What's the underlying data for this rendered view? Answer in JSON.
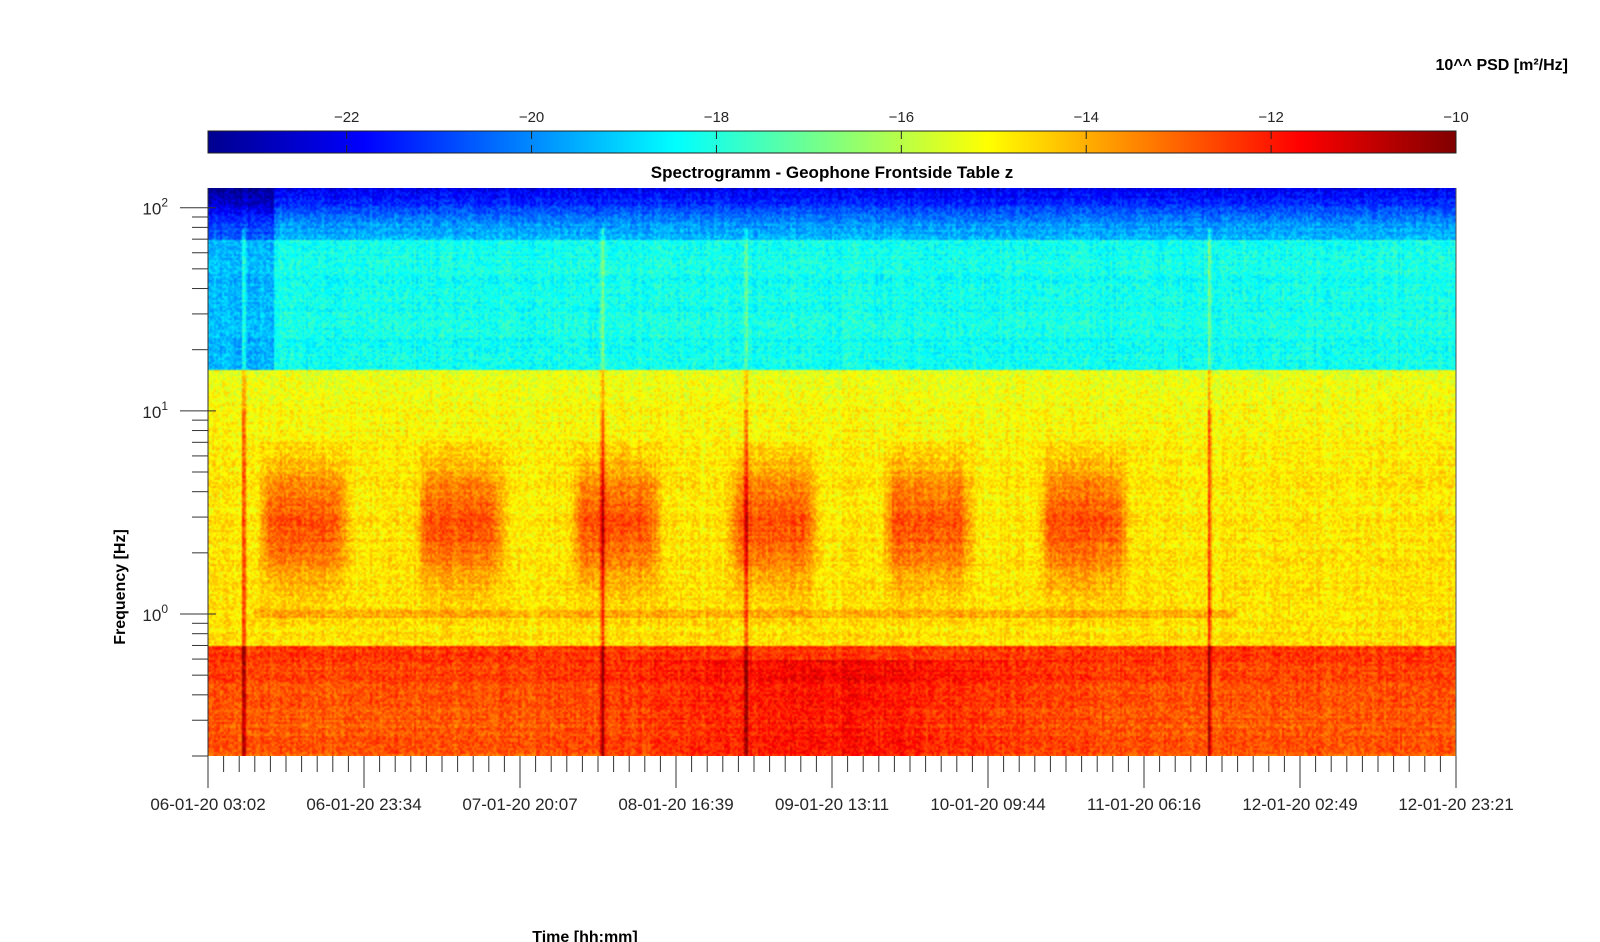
{
  "chart_data": {
    "type": "heatmap",
    "title": "Spectrogramm - Geophone Frontside Table z",
    "xlabel": "Time [hh:mm]",
    "ylabel": "Frequency [Hz]",
    "y_scale": "log",
    "ylim": [
      0.2,
      125
    ],
    "y_ticks": [
      {
        "value": 1,
        "base": "10",
        "exp": "0"
      },
      {
        "value": 10,
        "base": "10",
        "exp": "1"
      },
      {
        "value": 100,
        "base": "10",
        "exp": "2"
      }
    ],
    "x_tick_labels": [
      "06-01-20 03:02",
      "06-01-20 23:34",
      "07-01-20 20:07",
      "08-01-20 16:39",
      "09-01-20 13:11",
      "10-01-20 09:44",
      "11-01-20 06:16",
      "12-01-20 02:49",
      "12-01-20 23:21"
    ],
    "colorbar": {
      "label": "10^^ PSD [m²/Hz]",
      "range": [
        -23.5,
        -10
      ],
      "ticks": [
        -22,
        -20,
        -18,
        -16,
        -14,
        -12,
        -10
      ],
      "colormap": "jet",
      "location": "top"
    },
    "features": {
      "psd_low_freq_band": {
        "freq_below_hz": 0.7,
        "level": -12.5
      },
      "psd_high_freq_band": {
        "freq_above_hz": 100,
        "level": -21.5
      },
      "daily_activity_band": {
        "freq_hz_range": [
          0.9,
          6
        ],
        "level": -13.5,
        "cycles": 6
      },
      "transient_events_at_tick_fraction": [
        0.23,
        2.53,
        3.45,
        6.42
      ]
    },
    "grid": false
  }
}
